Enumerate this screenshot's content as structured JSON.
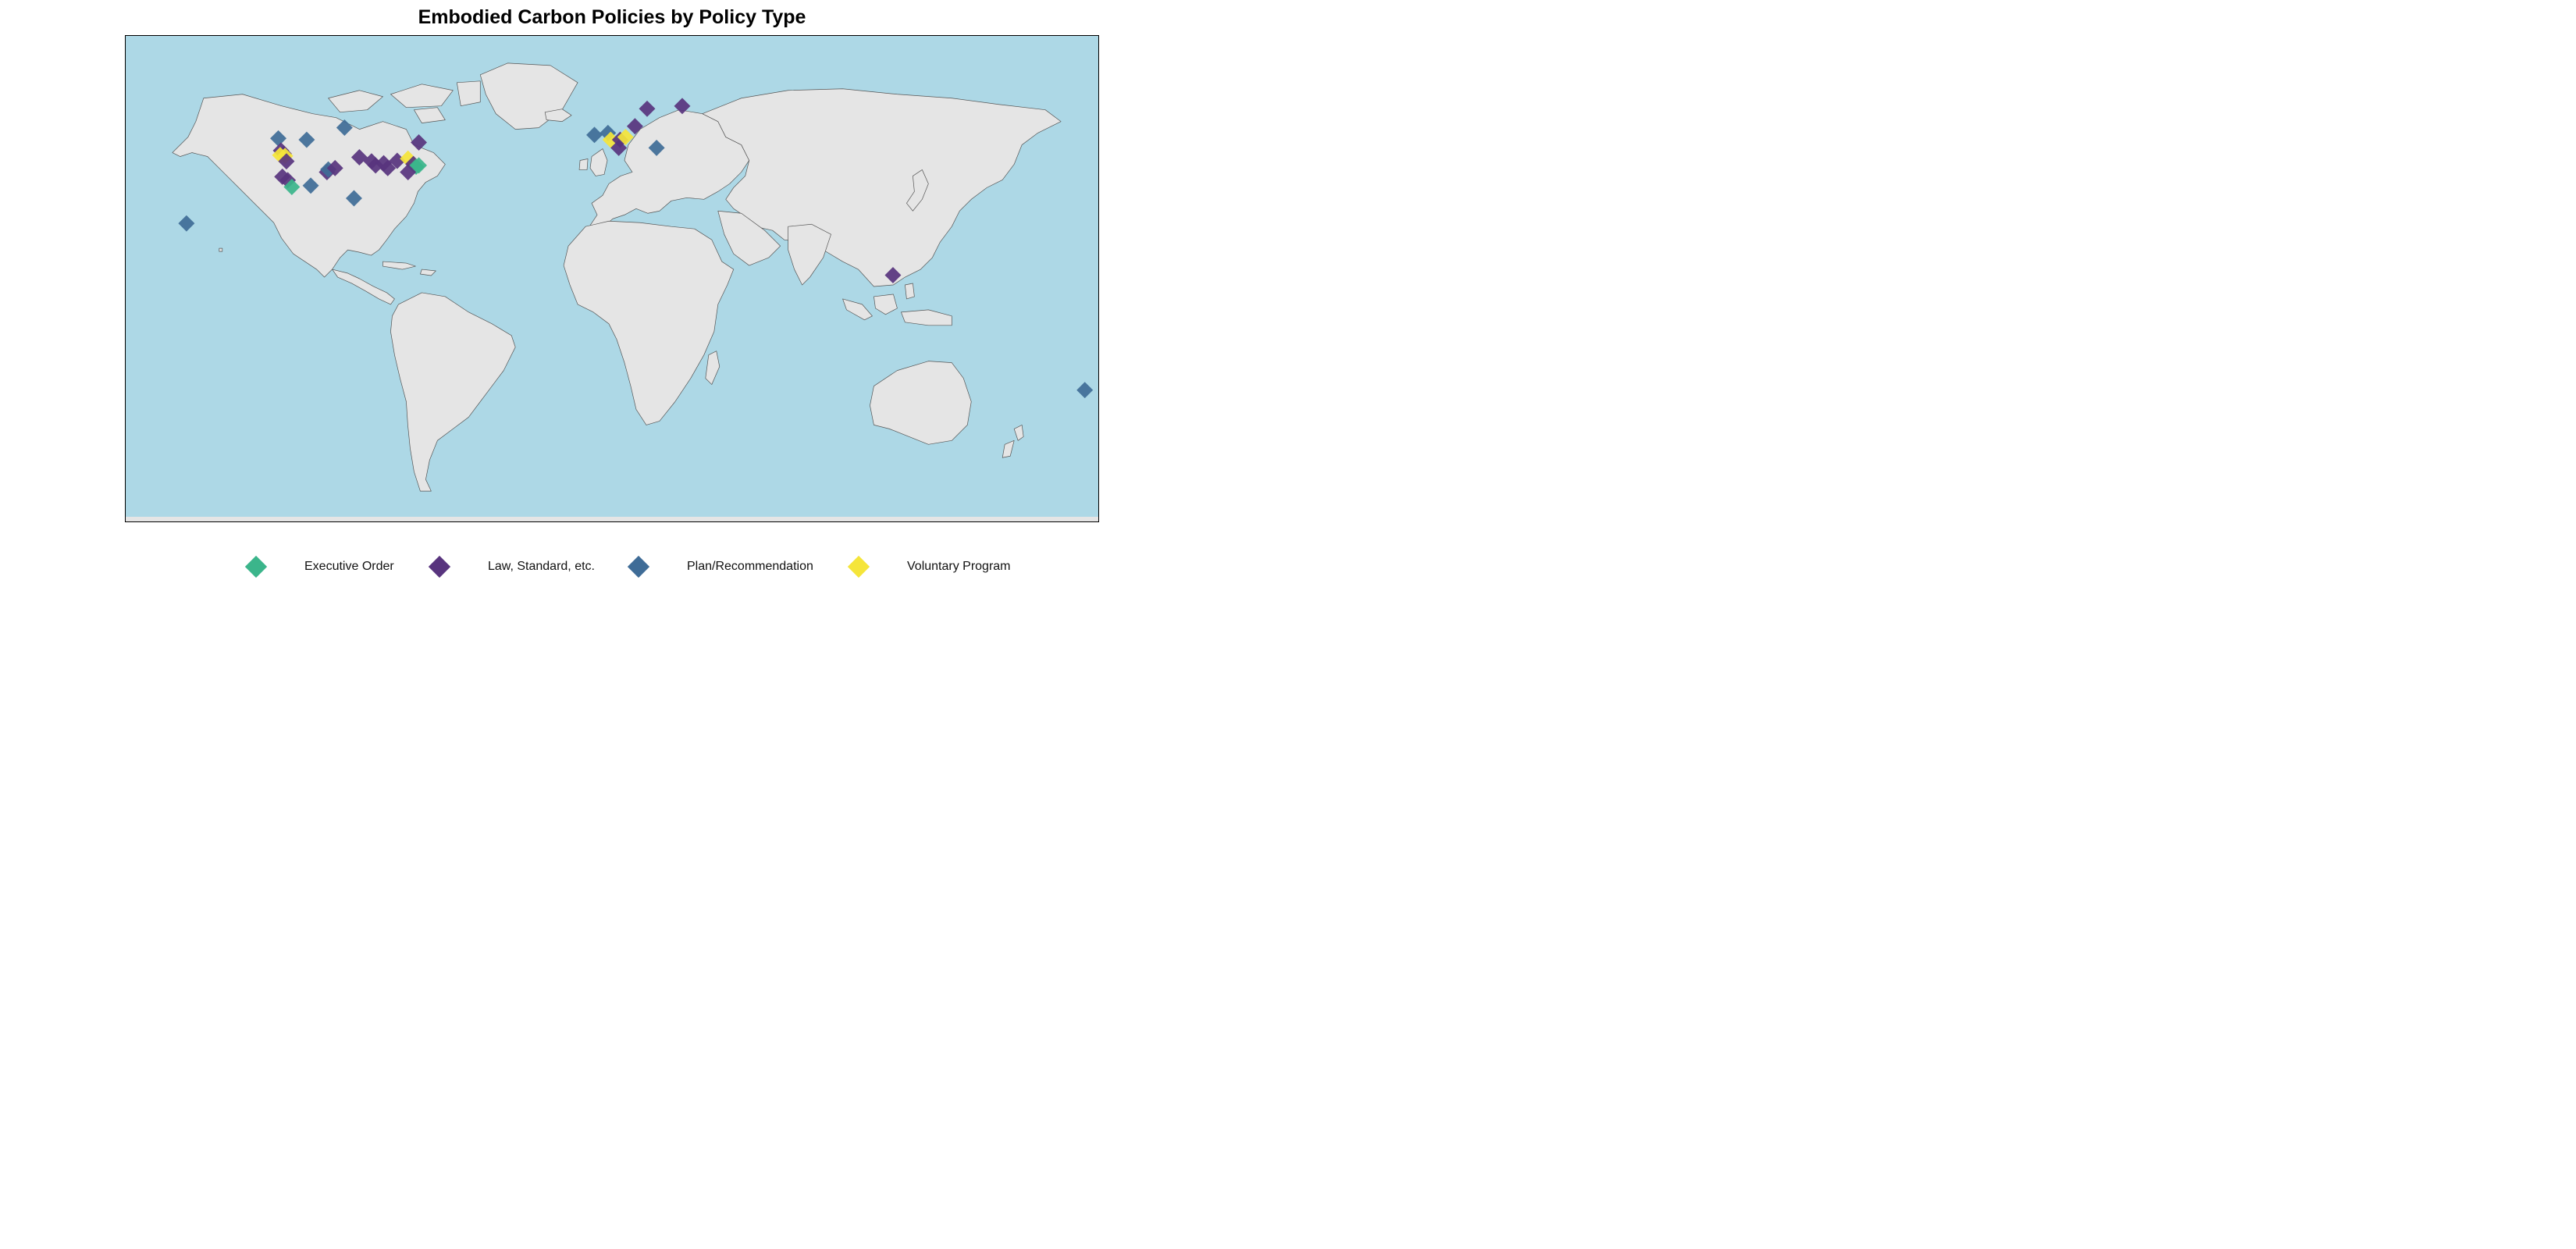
{
  "title": "Embodied Carbon Policies by Policy Type",
  "colors": {
    "ocean": "#add8e6",
    "land": "#e5e5e5",
    "border": "#555555",
    "executive_order": "#3bb58b",
    "law_standard": "#58347e",
    "plan_recommendation": "#3f6c97",
    "voluntary_program": "#f5e53a"
  },
  "legend": [
    {
      "key": "executive_order",
      "label": "Executive Order"
    },
    {
      "key": "law_standard",
      "label": "Law, Standard, etc."
    },
    {
      "key": "plan_recommendation",
      "label": "Plan/Recommendation"
    },
    {
      "key": "voluntary_program",
      "label": "Voluntary Program"
    }
  ],
  "markers": [
    {
      "type": "plan_recommendation",
      "lon": -123.5,
      "lat": 52.0
    },
    {
      "type": "plan_recommendation",
      "lon": -99.0,
      "lat": 56.0
    },
    {
      "type": "plan_recommendation",
      "lon": -113.0,
      "lat": 51.5
    },
    {
      "type": "law_standard",
      "lon": -122.5,
      "lat": 47.5
    },
    {
      "type": "law_standard",
      "lon": -121.5,
      "lat": 46.3
    },
    {
      "type": "voluntary_program",
      "lon": -122.8,
      "lat": 45.8
    },
    {
      "type": "voluntary_program",
      "lon": -121.0,
      "lat": 45.5
    },
    {
      "type": "law_standard",
      "lon": -120.5,
      "lat": 43.5
    },
    {
      "type": "law_standard",
      "lon": -122.0,
      "lat": 37.8
    },
    {
      "type": "law_standard",
      "lon": -120.0,
      "lat": 36.5
    },
    {
      "type": "executive_order",
      "lon": -118.5,
      "lat": 34.0
    },
    {
      "type": "plan_recommendation",
      "lon": -111.5,
      "lat": 34.5
    },
    {
      "type": "plan_recommendation",
      "lon": -95.5,
      "lat": 29.8
    },
    {
      "type": "law_standard",
      "lon": -105.5,
      "lat": 39.5
    },
    {
      "type": "plan_recommendation",
      "lon": -105.0,
      "lat": 40.5
    },
    {
      "type": "law_standard",
      "lon": -102.5,
      "lat": 41.0
    },
    {
      "type": "law_standard",
      "lon": -93.5,
      "lat": 45.0
    },
    {
      "type": "law_standard",
      "lon": -89.0,
      "lat": 43.5
    },
    {
      "type": "law_standard",
      "lon": -87.5,
      "lat": 42.0
    },
    {
      "type": "law_standard",
      "lon": -84.5,
      "lat": 42.8
    },
    {
      "type": "law_standard",
      "lon": -83.0,
      "lat": 41.0
    },
    {
      "type": "law_standard",
      "lon": -79.5,
      "lat": 43.7
    },
    {
      "type": "voluntary_program",
      "lon": -75.5,
      "lat": 44.5
    },
    {
      "type": "law_standard",
      "lon": -73.5,
      "lat": 42.5
    },
    {
      "type": "executive_order",
      "lon": -72.5,
      "lat": 41.5
    },
    {
      "type": "executive_order",
      "lon": -71.5,
      "lat": 42.0
    },
    {
      "type": "law_standard",
      "lon": -75.5,
      "lat": 39.5
    },
    {
      "type": "law_standard",
      "lon": -71.5,
      "lat": 50.5
    },
    {
      "type": "plan_recommendation",
      "lon": -157.5,
      "lat": 20.5
    },
    {
      "type": "plan_recommendation",
      "lon": -6.5,
      "lat": 53.3
    },
    {
      "type": "plan_recommendation",
      "lon": -1.5,
      "lat": 54.0
    },
    {
      "type": "voluntary_program",
      "lon": -0.5,
      "lat": 51.5
    },
    {
      "type": "law_standard",
      "lon": 3.0,
      "lat": 51.5
    },
    {
      "type": "voluntary_program",
      "lon": 5.0,
      "lat": 52.5
    },
    {
      "type": "law_standard",
      "lon": 2.5,
      "lat": 48.5
    },
    {
      "type": "law_standard",
      "lon": 8.5,
      "lat": 56.5
    },
    {
      "type": "law_standard",
      "lon": 13.0,
      "lat": 63.0
    },
    {
      "type": "law_standard",
      "lon": 26.0,
      "lat": 64.0
    },
    {
      "type": "plan_recommendation",
      "lon": 16.5,
      "lat": 48.5
    },
    {
      "type": "law_standard",
      "lon": 104.0,
      "lat": 1.3
    },
    {
      "type": "plan_recommendation",
      "lon": 175.0,
      "lat": -41.3
    }
  ]
}
